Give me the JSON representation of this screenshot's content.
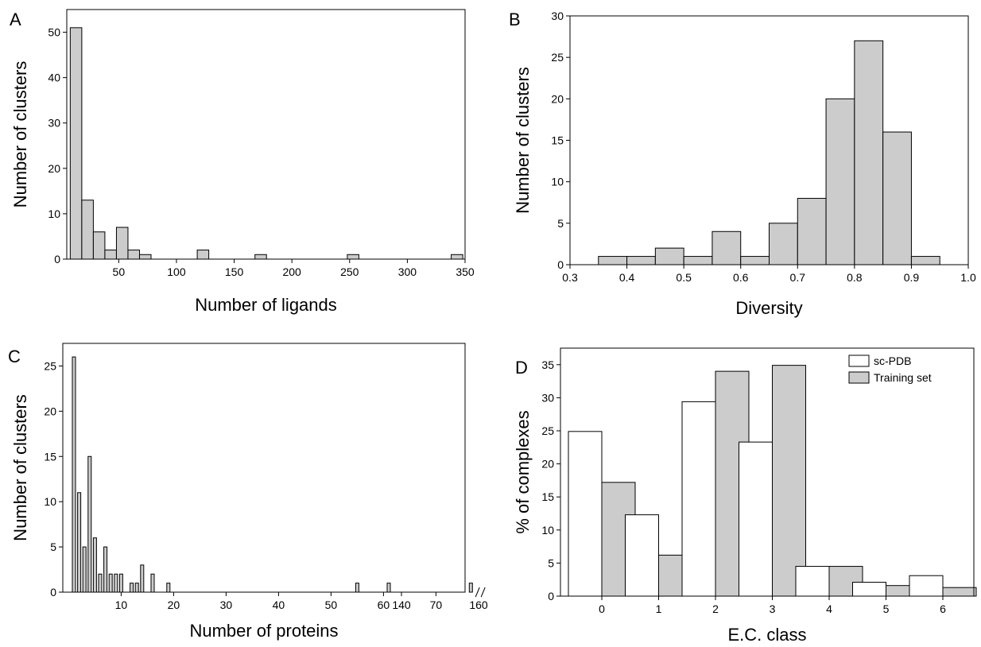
{
  "chart_data": [
    {
      "panel": "A",
      "type": "bar",
      "xlabel": "Number of ligands",
      "ylabel": "Number of clusters",
      "xlim": [
        5,
        350
      ],
      "ylim": [
        0,
        55
      ],
      "xticks": [
        50,
        100,
        150,
        200,
        250,
        300,
        350
      ],
      "yticks": [
        0,
        10,
        20,
        30,
        40,
        50
      ],
      "bar_color": "#cccccc",
      "bars": [
        {
          "x0": 8,
          "x1": 18,
          "y": 51
        },
        {
          "x0": 18,
          "x1": 28,
          "y": 13
        },
        {
          "x0": 28,
          "x1": 38,
          "y": 6
        },
        {
          "x0": 38,
          "x1": 48,
          "y": 2
        },
        {
          "x0": 48,
          "x1": 58,
          "y": 7
        },
        {
          "x0": 58,
          "x1": 68,
          "y": 2
        },
        {
          "x0": 68,
          "x1": 78,
          "y": 1
        },
        {
          "x0": 118,
          "x1": 128,
          "y": 2
        },
        {
          "x0": 168,
          "x1": 178,
          "y": 1
        },
        {
          "x0": 248,
          "x1": 258,
          "y": 1
        },
        {
          "x0": 338,
          "x1": 348,
          "y": 1
        }
      ],
      "data_labels": []
    },
    {
      "panel": "B",
      "type": "bar",
      "xlabel": "Diversity",
      "ylabel": "Number of clusters",
      "xlim": [
        0.3,
        1.0
      ],
      "ylim": [
        0,
        30
      ],
      "xticks": [
        0.3,
        0.4,
        0.5,
        0.6,
        0.7,
        0.8,
        0.9,
        1.0
      ],
      "yticks": [
        0,
        5,
        10,
        15,
        20,
        25,
        30
      ],
      "bar_color": "#cccccc",
      "bars": [
        {
          "x0": 0.35,
          "x1": 0.4,
          "y": 1
        },
        {
          "x0": 0.4,
          "x1": 0.45,
          "y": 1
        },
        {
          "x0": 0.45,
          "x1": 0.5,
          "y": 2
        },
        {
          "x0": 0.5,
          "x1": 0.55,
          "y": 1
        },
        {
          "x0": 0.55,
          "x1": 0.6,
          "y": 4
        },
        {
          "x0": 0.6,
          "x1": 0.65,
          "y": 1
        },
        {
          "x0": 0.65,
          "x1": 0.7,
          "y": 5
        },
        {
          "x0": 0.7,
          "x1": 0.75,
          "y": 8
        },
        {
          "x0": 0.75,
          "x1": 0.8,
          "y": 20
        },
        {
          "x0": 0.8,
          "x1": 0.85,
          "y": 27
        },
        {
          "x0": 0.85,
          "x1": 0.9,
          "y": 16
        },
        {
          "x0": 0.9,
          "x1": 0.95,
          "y": 1
        }
      ]
    },
    {
      "panel": "C",
      "type": "bar",
      "xlabel": "Number of proteins",
      "ylabel": "Number of clusters",
      "ylim": [
        0,
        27.5
      ],
      "yticks": [
        0,
        5,
        10,
        15,
        20,
        25
      ],
      "xticks": [
        "10",
        "20",
        "30",
        "40",
        "50",
        "60",
        "70",
        "140",
        "160"
      ],
      "axis_break_between": [
        "75",
        "140"
      ],
      "bar_color": "#cccccc",
      "bars": [
        {
          "x": 1,
          "y": 26
        },
        {
          "x": 2,
          "y": 11
        },
        {
          "x": 3,
          "y": 5
        },
        {
          "x": 4,
          "y": 15
        },
        {
          "x": 5,
          "y": 6
        },
        {
          "x": 6,
          "y": 2
        },
        {
          "x": 7,
          "y": 5
        },
        {
          "x": 8,
          "y": 2
        },
        {
          "x": 9,
          "y": 2
        },
        {
          "x": 10,
          "y": 2
        },
        {
          "x": 12,
          "y": 1
        },
        {
          "x": 13,
          "y": 1
        },
        {
          "x": 14,
          "y": 3
        },
        {
          "x": 16,
          "y": 2
        },
        {
          "x": 19,
          "y": 1
        },
        {
          "x": 55,
          "y": 1
        },
        {
          "x": 61,
          "y": 1
        },
        {
          "x": 158,
          "y": 1
        }
      ]
    },
    {
      "panel": "D",
      "type": "bar",
      "xlabel": "E.C. class",
      "ylabel": "% of complexes",
      "ylim": [
        0,
        37.5
      ],
      "yticks": [
        0,
        5,
        10,
        15,
        20,
        25,
        30,
        35
      ],
      "categories": [
        "0",
        "1",
        "2",
        "3",
        "4",
        "5",
        "6"
      ],
      "legend_position": "top-right",
      "series": [
        {
          "name": "sc-PDB",
          "color": "#ffffff",
          "values": [
            24.9,
            12.3,
            29.4,
            23.3,
            4.5,
            2.1,
            3.1
          ]
        },
        {
          "name": "Training set",
          "color": "#cccccc",
          "values": [
            17.2,
            6.2,
            34.0,
            34.9,
            4.5,
            1.6,
            1.3
          ]
        }
      ]
    }
  ]
}
